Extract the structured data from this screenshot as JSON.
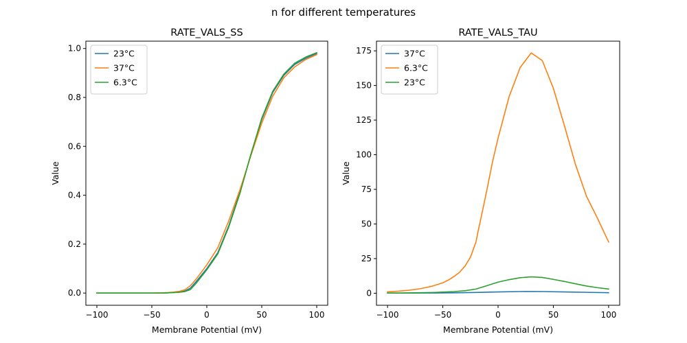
{
  "figure": {
    "suptitle": "n for different temperatures"
  },
  "chart_data": [
    {
      "type": "line",
      "title": "RATE_VALS_SS",
      "xlabel": "Membrane Potential (mV)",
      "ylabel": "Value",
      "xlim": [
        -110,
        110
      ],
      "ylim": [
        -0.05,
        1.03
      ],
      "xticks": [
        -100,
        -50,
        0,
        50,
        100
      ],
      "yticks": [
        0.0,
        0.2,
        0.4,
        0.6,
        0.8,
        1.0
      ],
      "ytick_decimals": 1,
      "grid": false,
      "legend_position": "top-left",
      "series": [
        {
          "name": "23°C",
          "color": "#1f77b4",
          "x": [
            -100,
            -90,
            -80,
            -70,
            -60,
            -50,
            -40,
            -35,
            -30,
            -25,
            -20,
            -15,
            -10,
            0,
            10,
            20,
            30,
            40,
            50,
            60,
            70,
            80,
            90,
            100
          ],
          "y": [
            0.0,
            0.0,
            0.0,
            0.0,
            0.0,
            0.0,
            0.0,
            0.001,
            0.002,
            0.004,
            0.008,
            0.02,
            0.045,
            0.1,
            0.165,
            0.275,
            0.41,
            0.565,
            0.71,
            0.82,
            0.89,
            0.935,
            0.96,
            0.98
          ]
        },
        {
          "name": "37°C",
          "color": "#ff7f0e",
          "x": [
            -100,
            -90,
            -80,
            -70,
            -60,
            -50,
            -40,
            -35,
            -30,
            -25,
            -20,
            -15,
            -10,
            0,
            10,
            20,
            30,
            40,
            50,
            60,
            70,
            80,
            90,
            100
          ],
          "y": [
            0.0,
            0.0,
            0.0,
            0.0,
            0.0,
            0.0,
            0.001,
            0.002,
            0.004,
            0.007,
            0.013,
            0.03,
            0.055,
            0.115,
            0.185,
            0.295,
            0.42,
            0.56,
            0.695,
            0.805,
            0.88,
            0.925,
            0.955,
            0.975
          ]
        },
        {
          "name": "6.3°C",
          "color": "#2ca02c",
          "x": [
            -100,
            -90,
            -80,
            -70,
            -60,
            -50,
            -40,
            -35,
            -30,
            -25,
            -20,
            -15,
            -10,
            0,
            10,
            20,
            30,
            40,
            50,
            60,
            70,
            80,
            90,
            100
          ],
          "y": [
            0.0,
            0.0,
            0.0,
            0.0,
            0.0,
            0.0,
            0.0,
            0.001,
            0.002,
            0.003,
            0.006,
            0.014,
            0.038,
            0.095,
            0.16,
            0.27,
            0.405,
            0.565,
            0.715,
            0.825,
            0.895,
            0.94,
            0.965,
            0.983
          ]
        }
      ]
    },
    {
      "type": "line",
      "title": "RATE_VALS_TAU",
      "xlabel": "Membrane Potential (mV)",
      "ylabel": "Value",
      "xlim": [
        -110,
        110
      ],
      "ylim": [
        -8.7,
        182.0
      ],
      "xticks": [
        -100,
        -50,
        0,
        50,
        100
      ],
      "yticks": [
        0,
        25,
        50,
        75,
        100,
        125,
        150,
        175
      ],
      "ytick_decimals": 0,
      "grid": false,
      "legend_position": "top-left",
      "series": [
        {
          "name": "37°C",
          "color": "#1f77b4",
          "x": [
            -100,
            -80,
            -60,
            -40,
            -20,
            0,
            20,
            30,
            40,
            60,
            80,
            100
          ],
          "y": [
            0.1,
            0.12,
            0.18,
            0.3,
            0.55,
            0.95,
            1.2,
            1.25,
            1.2,
            0.95,
            0.65,
            0.4
          ]
        },
        {
          "name": "6.3°C",
          "color": "#ff7f0e",
          "x": [
            -100,
            -90,
            -80,
            -70,
            -60,
            -50,
            -45,
            -40,
            -35,
            -30,
            -25,
            -20,
            -18,
            -15,
            -10,
            -5,
            0,
            10,
            20,
            30,
            40,
            50,
            60,
            70,
            80,
            90,
            100
          ],
          "y": [
            1.0,
            1.5,
            2.2,
            3.3,
            5.0,
            7.5,
            9.5,
            12.0,
            15.0,
            19.5,
            26.0,
            37.0,
            45.0,
            56.0,
            75.0,
            95.0,
            112.0,
            142.0,
            163.0,
            173.5,
            168.0,
            148.0,
            121.0,
            93.0,
            70.0,
            54.0,
            37.0
          ]
        },
        {
          "name": "23°C",
          "color": "#2ca02c",
          "x": [
            -100,
            -90,
            -80,
            -70,
            -60,
            -50,
            -40,
            -30,
            -20,
            -10,
            0,
            10,
            20,
            30,
            40,
            50,
            60,
            70,
            80,
            90,
            100
          ],
          "y": [
            0.1,
            0.15,
            0.25,
            0.35,
            0.5,
            0.8,
            1.2,
            1.8,
            3.0,
            5.5,
            8.0,
            9.8,
            11.2,
            11.8,
            11.4,
            10.0,
            8.5,
            6.8,
            5.2,
            4.0,
            3.0
          ]
        }
      ]
    }
  ]
}
